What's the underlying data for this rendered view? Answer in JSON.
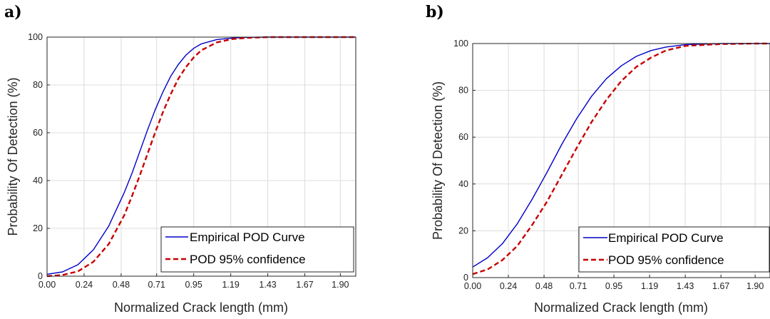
{
  "chart_data": [
    {
      "type": "line",
      "panel": "a)",
      "xlabel": "Normalized Crack length (mm)",
      "ylabel": "Probability Of Detection (%)",
      "x_ticks": [
        "0.00",
        "0.24",
        "0.48",
        "0.71",
        "0.95",
        "1.19",
        "1.43",
        "1.67",
        "1.90"
      ],
      "y_ticks": [
        "0",
        "20",
        "40",
        "60",
        "80",
        "100"
      ],
      "xlim": [
        0,
        2.0
      ],
      "ylim": [
        0,
        100
      ],
      "grid": true,
      "legend_position": "bottom-right",
      "series": [
        {
          "name": "Empirical POD Curve",
          "color": "#0000c8",
          "style": "solid",
          "x": [
            0.0,
            0.1,
            0.2,
            0.3,
            0.4,
            0.5,
            0.55,
            0.6,
            0.65,
            0.7,
            0.75,
            0.8,
            0.85,
            0.9,
            0.95,
            1.0,
            1.1,
            1.2,
            1.3,
            1.43,
            1.67,
            1.9,
            2.0
          ],
          "y": [
            0.8,
            1.8,
            4.8,
            11,
            21,
            35,
            43,
            52,
            61,
            69.5,
            77,
            83.5,
            88.5,
            92.5,
            95.3,
            97.2,
            99.0,
            99.6,
            99.9,
            100,
            100,
            100,
            100
          ]
        },
        {
          "name": "POD 95% confidence",
          "color": "#c80000",
          "style": "dashed",
          "x": [
            0.0,
            0.1,
            0.2,
            0.3,
            0.4,
            0.5,
            0.55,
            0.6,
            0.65,
            0.7,
            0.75,
            0.8,
            0.85,
            0.9,
            0.95,
            1.0,
            1.1,
            1.2,
            1.3,
            1.43,
            1.67,
            1.9,
            2.0
          ],
          "y": [
            0.0,
            0.5,
            2.0,
            6.0,
            13.5,
            25.5,
            33.5,
            42,
            51,
            60,
            68.5,
            76,
            82.5,
            87.5,
            91.5,
            94.5,
            97.8,
            99.2,
            99.7,
            100,
            100,
            100,
            100
          ]
        }
      ]
    },
    {
      "type": "line",
      "panel": "b)",
      "xlabel": "Normalized Crack length (mm)",
      "ylabel": "Probability Of Detection (%)",
      "x_ticks": [
        "0.00",
        "0.24",
        "0.48",
        "0.71",
        "0.95",
        "1.19",
        "1.43",
        "1.67",
        "1.90"
      ],
      "y_ticks": [
        "0",
        "20",
        "40",
        "60",
        "80",
        "100"
      ],
      "xlim": [
        0,
        2.0
      ],
      "ylim": [
        0,
        100
      ],
      "grid": true,
      "legend_position": "bottom-right",
      "series": [
        {
          "name": "Empirical POD Curve",
          "color": "#0000c8",
          "style": "solid",
          "x": [
            0.0,
            0.1,
            0.2,
            0.3,
            0.4,
            0.5,
            0.6,
            0.7,
            0.8,
            0.9,
            1.0,
            1.1,
            1.2,
            1.3,
            1.43,
            1.67,
            1.9,
            2.0
          ],
          "y": [
            4.5,
            8.5,
            14.5,
            23,
            33.5,
            45,
            57,
            68,
            77.5,
            85,
            90.5,
            94.5,
            97,
            98.5,
            99.5,
            100,
            100,
            100
          ]
        },
        {
          "name": "POD 95% confidence",
          "color": "#c80000",
          "style": "dashed",
          "x": [
            0.0,
            0.1,
            0.2,
            0.3,
            0.4,
            0.5,
            0.6,
            0.7,
            0.8,
            0.9,
            1.0,
            1.1,
            1.2,
            1.3,
            1.43,
            1.67,
            1.9,
            2.0
          ],
          "y": [
            1.5,
            3.5,
            7.5,
            13.5,
            22.5,
            32.5,
            44,
            55.5,
            66.5,
            76,
            84,
            90,
            94,
            97,
            99,
            99.8,
            100,
            100
          ]
        }
      ]
    }
  ]
}
